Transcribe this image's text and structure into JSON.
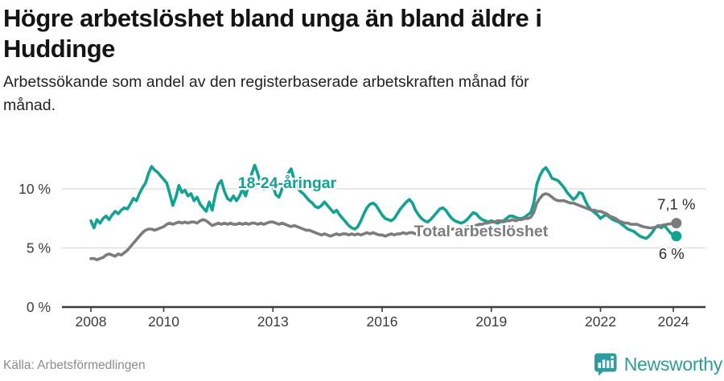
{
  "header": {
    "title_line1": "Högre arbetslöshet bland unga än bland äldre i",
    "title_line2": "Huddinge",
    "subtitle_line1": "Arbetssökande som andel av den registerbaserade arbetskraften månad för",
    "subtitle_line2": "månad."
  },
  "footer": {
    "source": "Källa: Arbetsförmedlingen",
    "brand_name": "Newsworthy",
    "brand_icon": "bar-chart-bubble-icon",
    "brand_color": "#2e9c9e"
  },
  "colors": {
    "young_series": "#12a294",
    "total_series": "#7c7c7c",
    "axis_text": "#3c3c3c",
    "gridline": "#d9d9d9",
    "end_label_text": "#2b2b2b"
  },
  "chart_data": {
    "type": "line",
    "title": "Högre arbetslöshet bland unga än bland äldre i Huddinge",
    "subtitle": "Arbetssökande som andel av den registerbaserade arbetskraften månad för månad.",
    "unit": "percent",
    "x_start_year": 2008,
    "x_start_month": 1,
    "x_step_months": 1,
    "x_ticks": [
      2008,
      2010,
      2013,
      2016,
      2019,
      2022,
      2024
    ],
    "y_ticks": [
      {
        "value": 0,
        "label": "0 %"
      },
      {
        "value": 5,
        "label": "5 %"
      },
      {
        "value": 10,
        "label": "10 %"
      }
    ],
    "ylim": [
      0,
      12.5
    ],
    "grid": true,
    "legend_position": "inline-labels",
    "series": [
      {
        "name": "18-24-åringar",
        "color": "#12a294",
        "end_label": "6 %",
        "last_value": 6.0,
        "values": [
          7.3,
          6.7,
          7.4,
          7.1,
          7.5,
          7.7,
          7.4,
          7.8,
          8.1,
          7.9,
          8.2,
          8.4,
          8.3,
          8.7,
          9.2,
          9.0,
          9.6,
          10.1,
          10.5,
          11.3,
          11.9,
          11.6,
          11.4,
          11.1,
          10.8,
          10.5,
          9.6,
          8.6,
          9.3,
          10.3,
          9.7,
          9.9,
          9.4,
          9.6,
          9.0,
          9.3,
          8.7,
          8.4,
          8.1,
          8.9,
          8.2,
          9.5,
          10.4,
          10.7,
          9.8,
          9.2,
          9.0,
          9.4,
          9.0,
          9.4,
          10.0,
          9.4,
          10.3,
          11.3,
          12.0,
          11.3,
          10.4,
          10.0,
          10.2,
          10.3,
          10.2,
          9.5,
          9.3,
          10.0,
          10.6,
          11.3,
          11.7,
          10.8,
          10.1,
          9.8,
          9.6,
          9.3,
          9.0,
          8.8,
          8.5,
          8.4,
          8.6,
          8.9,
          8.6,
          8.3,
          8.0,
          8.2,
          7.8,
          7.5,
          7.2,
          6.9,
          6.7,
          6.6,
          6.8,
          7.3,
          7.9,
          8.4,
          8.7,
          8.8,
          8.6,
          8.2,
          7.8,
          7.5,
          7.4,
          7.3,
          7.5,
          7.9,
          8.3,
          8.6,
          8.9,
          9.1,
          8.8,
          8.2,
          7.8,
          7.5,
          7.3,
          7.2,
          7.4,
          7.7,
          8.0,
          8.3,
          8.4,
          8.2,
          7.8,
          7.5,
          7.3,
          7.2,
          7.1,
          7.2,
          7.4,
          7.7,
          8.0,
          7.9,
          7.6,
          7.4,
          7.3,
          7.2,
          7.3,
          7.2,
          7.1,
          7.2,
          7.3,
          7.5,
          7.7,
          7.7,
          7.6,
          7.5,
          7.5,
          7.6,
          7.8,
          8.0,
          8.8,
          10.4,
          11.1,
          11.6,
          11.8,
          11.4,
          10.9,
          10.8,
          10.7,
          10.4,
          10.1,
          9.7,
          9.4,
          9.1,
          9.3,
          9.7,
          9.6,
          9.0,
          8.5,
          8.2,
          8.0,
          7.8,
          7.5,
          7.7,
          7.8,
          7.6,
          7.4,
          7.3,
          7.2,
          7.0,
          6.8,
          6.6,
          6.5,
          6.4,
          6.2,
          6.0,
          5.9,
          5.8,
          6.0,
          6.3,
          6.7,
          6.9,
          6.7,
          6.9,
          6.6,
          6.3,
          6.1,
          6.0
        ]
      },
      {
        "name": "Total arbetslöshet",
        "color": "#7c7c7c",
        "end_label": "7,1 %",
        "last_value": 7.1,
        "values": [
          4.1,
          4.1,
          4.0,
          4.1,
          4.2,
          4.4,
          4.5,
          4.4,
          4.3,
          4.5,
          4.4,
          4.6,
          4.8,
          5.1,
          5.4,
          5.7,
          6.0,
          6.3,
          6.5,
          6.6,
          6.6,
          6.5,
          6.6,
          6.7,
          6.8,
          7.0,
          7.1,
          7.0,
          7.1,
          7.2,
          7.1,
          7.2,
          7.1,
          7.2,
          7.2,
          7.1,
          7.3,
          7.4,
          7.3,
          7.1,
          6.9,
          7.0,
          7.1,
          7.0,
          7.1,
          7.0,
          7.1,
          7.0,
          7.0,
          7.1,
          7.0,
          7.1,
          7.0,
          7.1,
          7.1,
          7.0,
          7.1,
          7.0,
          7.1,
          7.2,
          7.2,
          7.1,
          7.0,
          7.1,
          7.0,
          6.9,
          6.8,
          6.9,
          6.8,
          6.7,
          6.6,
          6.5,
          6.5,
          6.4,
          6.3,
          6.2,
          6.1,
          6.2,
          6.1,
          6.0,
          6.1,
          6.2,
          6.1,
          6.2,
          6.2,
          6.1,
          6.2,
          6.1,
          6.2,
          6.1,
          6.2,
          6.3,
          6.2,
          6.3,
          6.2,
          6.1,
          6.1,
          6.0,
          6.1,
          6.2,
          6.1,
          6.2,
          6.2,
          6.3,
          6.2,
          6.3,
          6.3,
          6.2,
          6.2,
          6.3,
          6.2,
          6.3,
          6.3,
          6.4,
          6.4,
          6.5,
          6.4,
          6.5,
          6.5,
          6.6,
          6.6,
          6.6,
          6.7,
          6.7,
          6.8,
          6.8,
          6.9,
          6.9,
          7.0,
          7.0,
          7.1,
          7.1,
          7.2,
          7.2,
          7.3,
          7.3,
          7.2,
          7.3,
          7.3,
          7.4,
          7.3,
          7.4,
          7.4,
          7.5,
          7.5,
          7.6,
          8.0,
          8.8,
          9.2,
          9.5,
          9.6,
          9.5,
          9.3,
          9.1,
          9.0,
          9.0,
          9.0,
          8.9,
          8.8,
          8.8,
          8.7,
          8.6,
          8.5,
          8.4,
          8.3,
          8.2,
          8.2,
          8.1,
          8.1,
          8.0,
          7.9,
          7.7,
          7.6,
          7.5,
          7.3,
          7.2,
          7.1,
          7.1,
          7.0,
          7.0,
          7.0,
          6.9,
          6.8,
          6.75,
          6.7,
          6.7,
          6.75,
          6.8,
          6.9,
          6.95,
          7.0,
          7.05,
          7.05,
          7.1
        ]
      }
    ]
  }
}
